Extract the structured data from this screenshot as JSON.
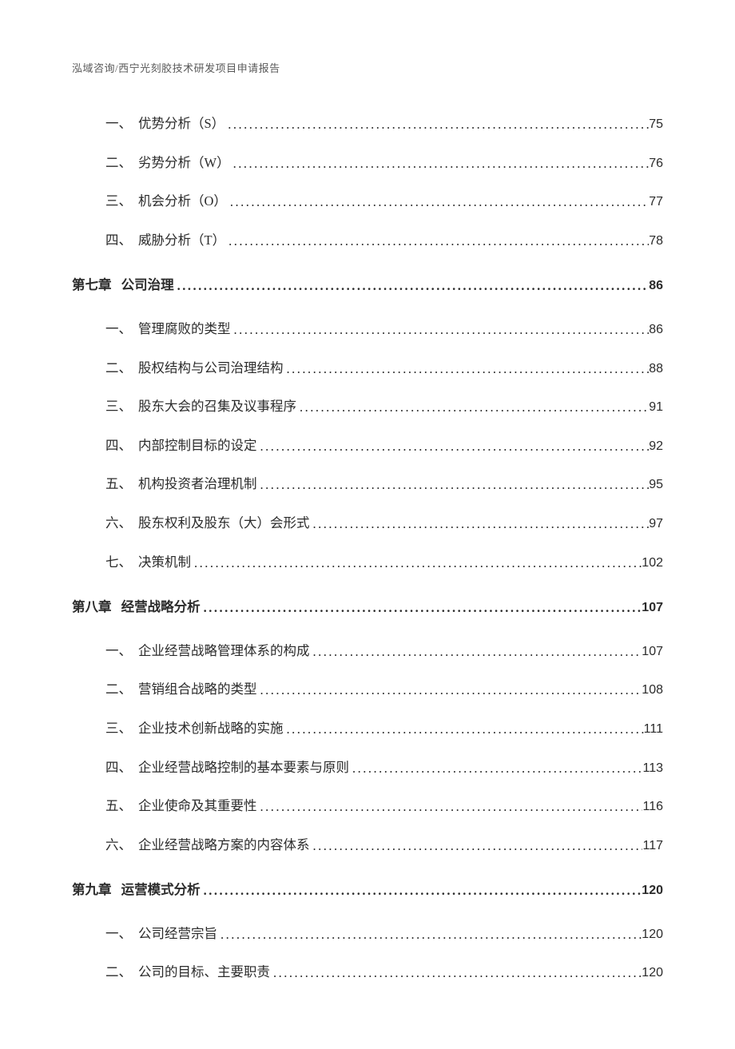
{
  "header": "泓域咨询/西宁光刻胶技术研发项目申请报告",
  "toc": [
    {
      "type": "sub",
      "num": "一、",
      "title": "优势分析（S）",
      "page": "75"
    },
    {
      "type": "sub",
      "num": "二、",
      "title": "劣势分析（W）",
      "page": "76"
    },
    {
      "type": "sub",
      "num": "三、",
      "title": "机会分析（O）",
      "page": "77"
    },
    {
      "type": "sub",
      "num": "四、",
      "title": "威胁分析（T）",
      "page": "78"
    },
    {
      "type": "chapter",
      "num": "第七章",
      "title": " 公司治理",
      "page": "86"
    },
    {
      "type": "sub",
      "num": "一、",
      "title": "管理腐败的类型",
      "page": "86"
    },
    {
      "type": "sub",
      "num": "二、",
      "title": "股权结构与公司治理结构",
      "page": "88"
    },
    {
      "type": "sub",
      "num": "三、",
      "title": "股东大会的召集及议事程序",
      "page": "91"
    },
    {
      "type": "sub",
      "num": "四、",
      "title": "内部控制目标的设定",
      "page": "92"
    },
    {
      "type": "sub",
      "num": "五、",
      "title": "机构投资者治理机制",
      "page": "95"
    },
    {
      "type": "sub",
      "num": "六、",
      "title": "股东权利及股东（大）会形式",
      "page": "97"
    },
    {
      "type": "sub",
      "num": "七、",
      "title": "决策机制",
      "page": "102"
    },
    {
      "type": "chapter",
      "num": "第八章",
      "title": " 经营战略分析",
      "page": "107"
    },
    {
      "type": "sub",
      "num": "一、",
      "title": "企业经营战略管理体系的构成",
      "page": "107"
    },
    {
      "type": "sub",
      "num": "二、",
      "title": "营销组合战略的类型",
      "page": "108"
    },
    {
      "type": "sub",
      "num": "三、",
      "title": "企业技术创新战略的实施",
      "page": "111"
    },
    {
      "type": "sub",
      "num": "四、",
      "title": "企业经营战略控制的基本要素与原则",
      "page": "113"
    },
    {
      "type": "sub",
      "num": "五、",
      "title": "企业使命及其重要性",
      "page": "116"
    },
    {
      "type": "sub",
      "num": "六、",
      "title": "企业经营战略方案的内容体系",
      "page": "117"
    },
    {
      "type": "chapter",
      "num": "第九章",
      "title": " 运营模式分析",
      "page": "120"
    },
    {
      "type": "sub",
      "num": "一、",
      "title": "公司经营宗旨",
      "page": "120"
    },
    {
      "type": "sub",
      "num": "二、",
      "title": "公司的目标、主要职责",
      "page": "120"
    }
  ]
}
